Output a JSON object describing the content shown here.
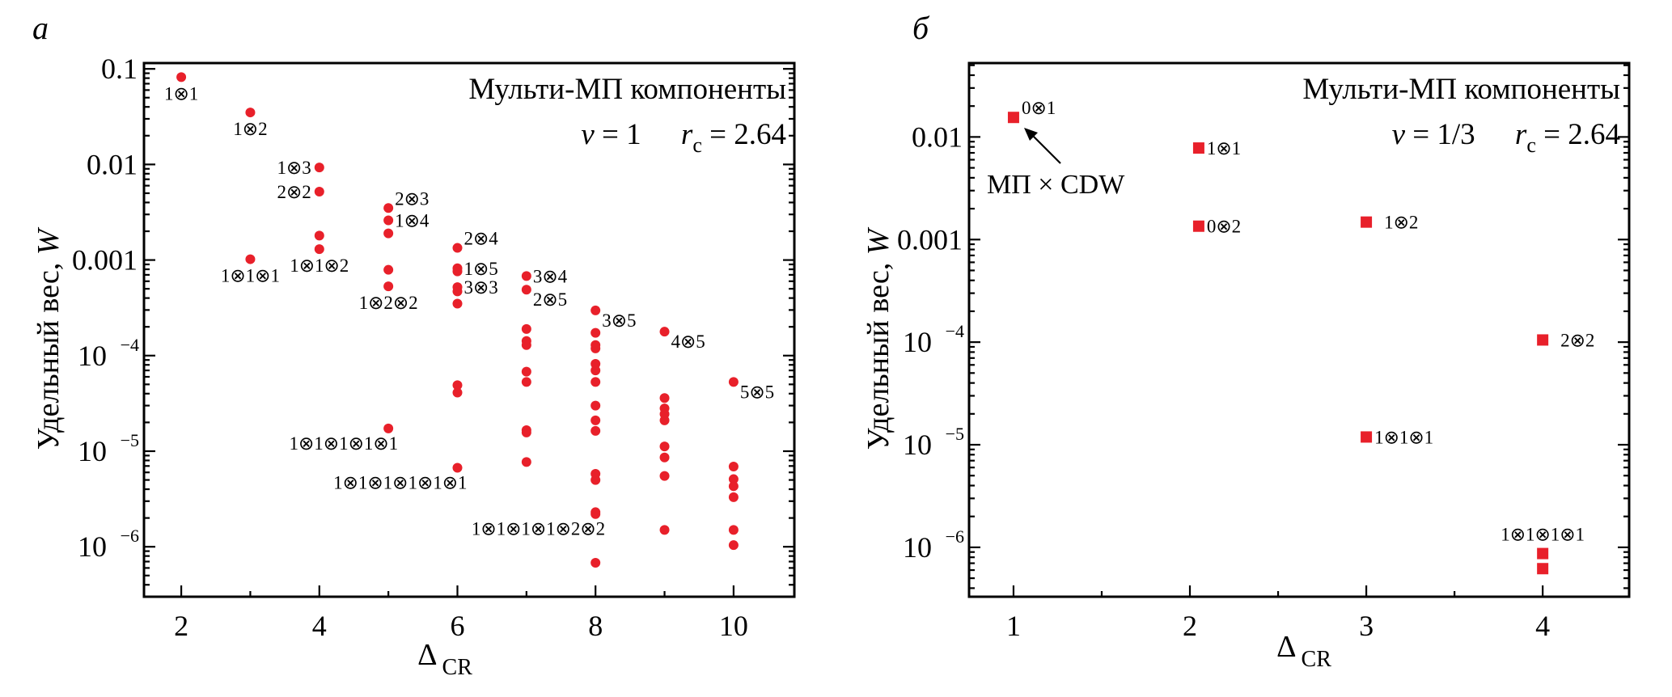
{
  "chart_data": [
    {
      "panel_letter": "а",
      "type": "scatter",
      "marker": "circle",
      "marker_color": "#e8202a",
      "title": "Мульти-МП компоненты",
      "params": {
        "nu_symbol": "ν",
        "nu_value": "1",
        "rc_symbol": "r",
        "rc_sub": "c",
        "rc_value": "2.64"
      },
      "xlabel": "Δ",
      "xlabel_sub": "CR",
      "ylabel": "Удельный вес, ",
      "ylabel_italic": "W",
      "xscale": "linear",
      "yscale": "log",
      "xlim": [
        1.46,
        10.88
      ],
      "ylim": [
        3e-07,
        0.115
      ],
      "xticks_major": [
        2,
        4,
        6,
        8,
        10
      ],
      "xtick_labels": [
        "2",
        "4",
        "6",
        "8",
        "10"
      ],
      "xticks_minor": [
        3,
        5,
        7,
        9
      ],
      "yticks": [
        {
          "value": 0.1,
          "base": "0.1",
          "exp": ""
        },
        {
          "value": 0.01,
          "base": "0.01",
          "exp": ""
        },
        {
          "value": 0.001,
          "base": "0.001",
          "exp": ""
        },
        {
          "value": 0.0001,
          "base": "10",
          "exp": "−4"
        },
        {
          "value": 1e-05,
          "base": "10",
          "exp": "−5"
        },
        {
          "value": 1e-06,
          "base": "10",
          "exp": "−6"
        }
      ],
      "points": [
        {
          "x": 2,
          "y": 0.082,
          "label": "1⊗1",
          "label_pos": "below"
        },
        {
          "x": 3,
          "y": 0.035,
          "label": "1⊗2",
          "label_pos": "below"
        },
        {
          "x": 3,
          "y": 0.00102,
          "label": "1⊗1⊗1",
          "label_pos": "below"
        },
        {
          "x": 4,
          "y": 0.0093,
          "label": "1⊗3",
          "label_pos": "left"
        },
        {
          "x": 4,
          "y": 0.0052,
          "label": "2⊗2",
          "label_pos": "left"
        },
        {
          "x": 4,
          "y": 0.0018,
          "label": "",
          "label_pos": ""
        },
        {
          "x": 4,
          "y": 0.0013,
          "label": "1⊗1⊗2",
          "label_pos": "below"
        },
        {
          "x": 5,
          "y": 0.0035,
          "label": "2⊗3",
          "label_pos": "right-up"
        },
        {
          "x": 5,
          "y": 0.0026,
          "label": "1⊗4",
          "label_pos": "right"
        },
        {
          "x": 5,
          "y": 0.0019,
          "label": "",
          "label_pos": ""
        },
        {
          "x": 5,
          "y": 0.00079,
          "label": "",
          "label_pos": ""
        },
        {
          "x": 5,
          "y": 0.00053,
          "label": "1⊗2⊗2",
          "label_pos": "below"
        },
        {
          "x": 5,
          "y": 1.73e-05,
          "label": "1⊗1⊗1⊗1⊗1",
          "label_pos": "below-left"
        },
        {
          "x": 6,
          "y": 0.00134,
          "label": "2⊗4",
          "label_pos": "right-up"
        },
        {
          "x": 6,
          "y": 0.00082,
          "label": "1⊗5",
          "label_pos": "right"
        },
        {
          "x": 6,
          "y": 0.00076,
          "label": "",
          "label_pos": ""
        },
        {
          "x": 6,
          "y": 0.00052,
          "label": "3⊗3",
          "label_pos": "right"
        },
        {
          "x": 6,
          "y": 0.00047,
          "label": "",
          "label_pos": ""
        },
        {
          "x": 6,
          "y": 0.00035,
          "label": "",
          "label_pos": ""
        },
        {
          "x": 6,
          "y": 4.9e-05,
          "label": "",
          "label_pos": ""
        },
        {
          "x": 6,
          "y": 4.1e-05,
          "label": "",
          "label_pos": ""
        },
        {
          "x": 6,
          "y": 6.7e-06,
          "label": "1⊗1⊗1⊗1⊗1⊗1",
          "label_pos": "below-left"
        },
        {
          "x": 7,
          "y": 0.00068,
          "label": "3⊗4",
          "label_pos": "right"
        },
        {
          "x": 7,
          "y": 0.00049,
          "label": "2⊗5",
          "label_pos": "right-down"
        },
        {
          "x": 7,
          "y": 0.00019,
          "label": "",
          "label_pos": ""
        },
        {
          "x": 7,
          "y": 0.000142,
          "label": "",
          "label_pos": ""
        },
        {
          "x": 7,
          "y": 0.000129,
          "label": "",
          "label_pos": ""
        },
        {
          "x": 7,
          "y": 6.8e-05,
          "label": "",
          "label_pos": ""
        },
        {
          "x": 7,
          "y": 5.3e-05,
          "label": "",
          "label_pos": ""
        },
        {
          "x": 7,
          "y": 1.66e-05,
          "label": "",
          "label_pos": ""
        },
        {
          "x": 7,
          "y": 1.57e-05,
          "label": "",
          "label_pos": ""
        },
        {
          "x": 7,
          "y": 7.7e-06,
          "label": "",
          "label_pos": ""
        },
        {
          "x": 8,
          "y": 0.000297,
          "label": "3⊗5",
          "label_pos": "right-down"
        },
        {
          "x": 8,
          "y": 0.000173,
          "label": "",
          "label_pos": ""
        },
        {
          "x": 8,
          "y": 0.000129,
          "label": "",
          "label_pos": ""
        },
        {
          "x": 8,
          "y": 0.000119,
          "label": "",
          "label_pos": ""
        },
        {
          "x": 8,
          "y": 8.2e-05,
          "label": "",
          "label_pos": ""
        },
        {
          "x": 8,
          "y": 7e-05,
          "label": "",
          "label_pos": ""
        },
        {
          "x": 8,
          "y": 5.3e-05,
          "label": "",
          "label_pos": ""
        },
        {
          "x": 8,
          "y": 3e-05,
          "label": "",
          "label_pos": ""
        },
        {
          "x": 8,
          "y": 2.1e-05,
          "label": "",
          "label_pos": ""
        },
        {
          "x": 8,
          "y": 1.63e-05,
          "label": "",
          "label_pos": ""
        },
        {
          "x": 8,
          "y": 5.8e-06,
          "label": "",
          "label_pos": ""
        },
        {
          "x": 8,
          "y": 5e-06,
          "label": "",
          "label_pos": ""
        },
        {
          "x": 8,
          "y": 2.3e-06,
          "label": "",
          "label_pos": ""
        },
        {
          "x": 8,
          "y": 2.2e-06,
          "label": "1⊗1⊗1⊗1⊗2⊗2",
          "label_pos": "below-left"
        },
        {
          "x": 8,
          "y": 6.8e-07,
          "label": "",
          "label_pos": ""
        },
        {
          "x": 9,
          "y": 0.000178,
          "label": "4⊗5",
          "label_pos": "right-down"
        },
        {
          "x": 9,
          "y": 3.6e-05,
          "label": "",
          "label_pos": ""
        },
        {
          "x": 9,
          "y": 2.8e-05,
          "label": "",
          "label_pos": ""
        },
        {
          "x": 9,
          "y": 2.45e-05,
          "label": "",
          "label_pos": ""
        },
        {
          "x": 9,
          "y": 2.1e-05,
          "label": "",
          "label_pos": ""
        },
        {
          "x": 9,
          "y": 1.12e-05,
          "label": "",
          "label_pos": ""
        },
        {
          "x": 9,
          "y": 8.6e-06,
          "label": "",
          "label_pos": ""
        },
        {
          "x": 9,
          "y": 5.5e-06,
          "label": "",
          "label_pos": ""
        },
        {
          "x": 9,
          "y": 1.5e-06,
          "label": "",
          "label_pos": ""
        },
        {
          "x": 10,
          "y": 5.3e-05,
          "label": "5⊗5",
          "label_pos": "right-down"
        },
        {
          "x": 10,
          "y": 6.9e-06,
          "label": "",
          "label_pos": ""
        },
        {
          "x": 10,
          "y": 5.1e-06,
          "label": "",
          "label_pos": ""
        },
        {
          "x": 10,
          "y": 4.3e-06,
          "label": "",
          "label_pos": ""
        },
        {
          "x": 10,
          "y": 3.3e-06,
          "label": "",
          "label_pos": ""
        },
        {
          "x": 10,
          "y": 1.5e-06,
          "label": "",
          "label_pos": ""
        },
        {
          "x": 10,
          "y": 1.04e-06,
          "label": "",
          "label_pos": ""
        }
      ]
    },
    {
      "panel_letter": "б",
      "type": "scatter",
      "marker": "square",
      "marker_color": "#e8202a",
      "title": "Мульти-МП компоненты",
      "params": {
        "nu_symbol": "ν",
        "nu_value": "1/3",
        "rc_symbol": "r",
        "rc_sub": "c",
        "rc_value": "2.64"
      },
      "xlabel": "Δ",
      "xlabel_sub": "CR",
      "ylabel": "Удельный вес, ",
      "ylabel_italic": "W",
      "xscale": "linear",
      "yscale": "log",
      "xlim": [
        0.748,
        4.49
      ],
      "ylim": [
        3.3e-07,
        0.0525
      ],
      "xticks_major": [
        1,
        2,
        3,
        4
      ],
      "xtick_labels": [
        "1",
        "2",
        "3",
        "4"
      ],
      "xticks_minor": [
        1.5,
        2.5,
        3.5
      ],
      "yticks": [
        {
          "value": 0.01,
          "base": "0.01",
          "exp": ""
        },
        {
          "value": 0.001,
          "base": "0.001",
          "exp": ""
        },
        {
          "value": 0.0001,
          "base": "10",
          "exp": "−4"
        },
        {
          "value": 1e-05,
          "base": "10",
          "exp": "−5"
        },
        {
          "value": 1e-06,
          "base": "10",
          "exp": "−6"
        }
      ],
      "annotation": {
        "text": "МП × CDW",
        "points_to": "0⊗1"
      },
      "points": [
        {
          "x": 1,
          "y": 0.0155,
          "label": "0⊗1",
          "label_pos": "right-up"
        },
        {
          "x": 2.05,
          "y": 0.0078,
          "label": "1⊗1",
          "label_pos": "right"
        },
        {
          "x": 2.05,
          "y": 0.00135,
          "label": "0⊗2",
          "label_pos": "right"
        },
        {
          "x": 3,
          "y": 0.00148,
          "label": "1⊗2",
          "label_pos": "right-gap"
        },
        {
          "x": 3,
          "y": 1.19e-05,
          "label": "1⊗1⊗1",
          "label_pos": "right"
        },
        {
          "x": 4,
          "y": 0.000105,
          "label": "2⊗2",
          "label_pos": "right-gap"
        },
        {
          "x": 4,
          "y": 8.7e-07,
          "label": "1⊗1⊗1⊗1",
          "label_pos": "above"
        },
        {
          "x": 4,
          "y": 6.2e-07,
          "label": "",
          "label_pos": ""
        }
      ]
    }
  ]
}
